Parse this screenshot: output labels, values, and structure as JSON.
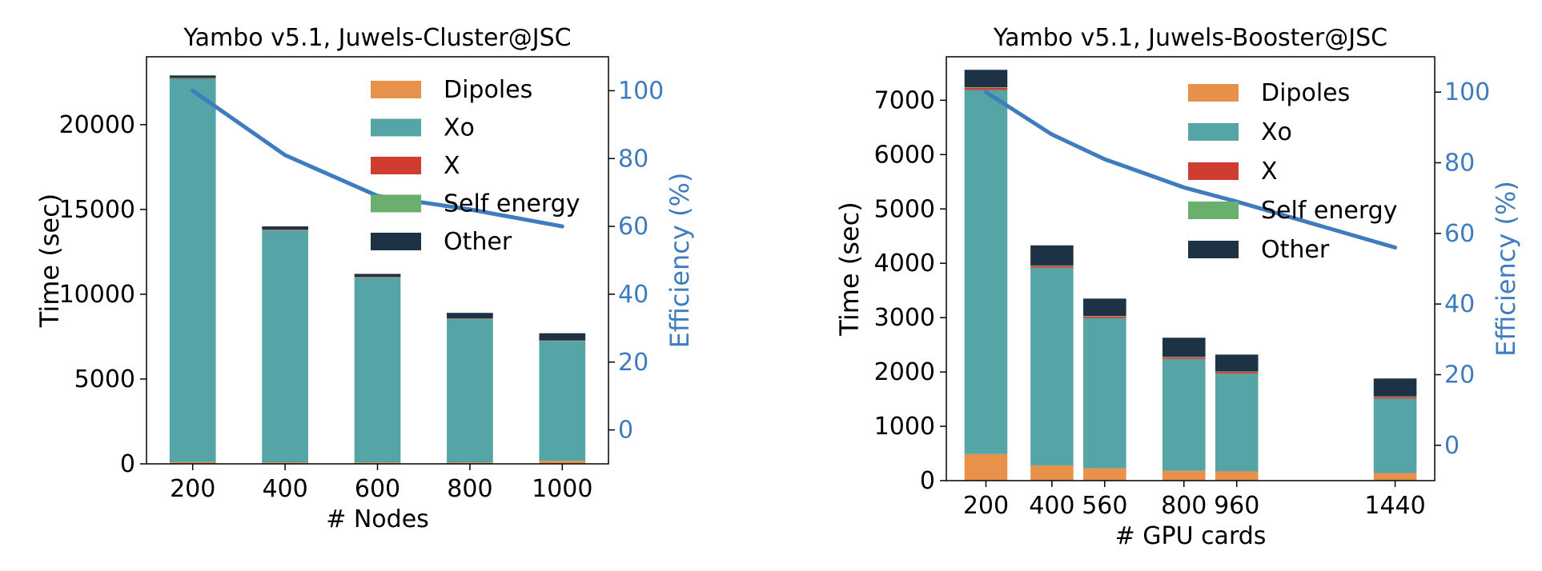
{
  "chart_data": [
    {
      "type": "bar",
      "title": "Yambo v5.1, Juwels-Cluster@JSC",
      "xlabel": "# Nodes",
      "ylabel": "Time (sec)",
      "y2label": "Efficiency (%)",
      "x": [
        200,
        400,
        600,
        800,
        1000
      ],
      "xticks": [
        200,
        400,
        600,
        800,
        1000
      ],
      "xlim": [
        100,
        1100
      ],
      "ylim": [
        0,
        24000
      ],
      "yticks": [
        0,
        5000,
        10000,
        15000,
        20000
      ],
      "y2lim": [
        -10,
        110
      ],
      "y2ticks": [
        0,
        20,
        40,
        60,
        80,
        100
      ],
      "bar_width": 100,
      "stacked": true,
      "legend_position": "top-right",
      "series": [
        {
          "name": "Dipoles",
          "color": "#E8914B",
          "values": [
            100,
            80,
            80,
            80,
            180
          ]
        },
        {
          "name": "Xo",
          "color": "#55A5A6",
          "values": [
            22600,
            13680,
            10900,
            8450,
            7050
          ]
        },
        {
          "name": "X",
          "color": "#D03B32",
          "values": [
            30,
            30,
            30,
            20,
            20
          ]
        },
        {
          "name": "Self energy",
          "color": "#6AAF6E",
          "values": [
            20,
            20,
            20,
            20,
            20
          ]
        },
        {
          "name": "Other",
          "color": "#1E3246",
          "values": [
            150,
            190,
            170,
            330,
            430
          ]
        }
      ],
      "efficiency": {
        "name": "Efficiency",
        "color": "#3F7BBF",
        "values": [
          100,
          81,
          69,
          65,
          60
        ]
      }
    },
    {
      "type": "bar",
      "title": "Yambo v5.1, Juwels-Booster@JSC",
      "xlabel": "# GPU cards",
      "ylabel": "Time (sec)",
      "y2label": "Efficiency (%)",
      "x": [
        200,
        400,
        560,
        800,
        960,
        1440
      ],
      "xticks": [
        200,
        400,
        560,
        800,
        960,
        1440
      ],
      "xlim": [
        80,
        1560
      ],
      "ylim": [
        0,
        7800
      ],
      "yticks": [
        0,
        1000,
        2000,
        3000,
        4000,
        5000,
        6000,
        7000
      ],
      "y2lim": [
        -10,
        110
      ],
      "y2ticks": [
        0,
        20,
        40,
        60,
        80,
        100
      ],
      "bar_width": 130,
      "stacked": true,
      "legend_position": "top-right",
      "series": [
        {
          "name": "Dipoles",
          "color": "#E8914B",
          "values": [
            490,
            280,
            230,
            180,
            170,
            140
          ]
        },
        {
          "name": "Xo",
          "color": "#55A5A6",
          "values": [
            6700,
            3640,
            2760,
            2060,
            1800,
            1370
          ]
        },
        {
          "name": "X",
          "color": "#D03B32",
          "values": [
            40,
            30,
            30,
            30,
            30,
            30
          ]
        },
        {
          "name": "Self energy",
          "color": "#6AAF6E",
          "values": [
            10,
            10,
            10,
            10,
            10,
            10
          ]
        },
        {
          "name": "Other",
          "color": "#1E3246",
          "values": [
            320,
            370,
            320,
            350,
            310,
            330
          ]
        }
      ],
      "efficiency": {
        "name": "Efficiency",
        "color": "#3F7BBF",
        "values": [
          100,
          88,
          81,
          73,
          69,
          56
        ]
      }
    }
  ]
}
